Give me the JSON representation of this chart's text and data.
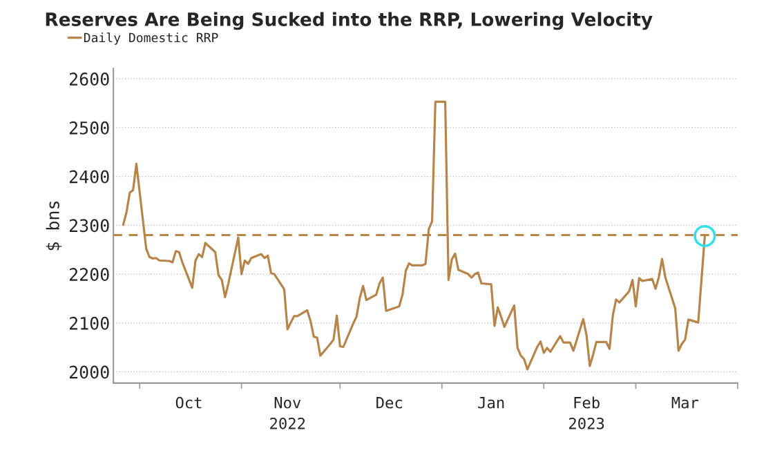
{
  "chart_data": {
    "type": "line",
    "title": "Reserves Are Being Sucked into the RRP, Lowering Velocity",
    "ylabel": "$ bns",
    "xlim": [
      "2022-09-23",
      "2023-04-01"
    ],
    "xticks": [
      {
        "value": "2022-10-01",
        "label": null
      },
      {
        "value": "2022-11-01",
        "label": null
      },
      {
        "value": "2022-12-01",
        "label": null
      },
      {
        "value": "2023-01-01",
        "label": null
      },
      {
        "value": "2023-02-01",
        "label": null
      },
      {
        "value": "2023-03-01",
        "label": null
      },
      {
        "value": "2023-04-01",
        "label": null
      },
      {
        "value": "2022-10-16",
        "label": "Oct"
      },
      {
        "value": "2022-11-15",
        "label": "Nov\n2022"
      },
      {
        "value": "2022-12-16",
        "label": "Dec"
      },
      {
        "value": "2023-01-16",
        "label": "Jan"
      },
      {
        "value": "2023-02-14",
        "label": "Feb\n2023"
      },
      {
        "value": "2023-03-16",
        "label": "Mar"
      }
    ],
    "ylim": [
      1977,
      2621
    ],
    "yticks": [
      2000,
      2100,
      2200,
      2300,
      2400,
      2500,
      2600
    ],
    "grid": "y",
    "legend": "top left",
    "ref_lines": [
      {
        "axis": "y",
        "value": 2280,
        "color": "#b5854a",
        "line_style": "dashed"
      }
    ],
    "series": [
      {
        "name": "Daily Domestic RRP",
        "color": "#b5854a",
        "line_style": "solid",
        "x": [
          "2022-09-26",
          "2022-09-27",
          "2022-09-28",
          "2022-09-29",
          "2022-09-30",
          "2022-10-03",
          "2022-10-04",
          "2022-10-05",
          "2022-10-06",
          "2022-10-07",
          "2022-10-10",
          "2022-10-11",
          "2022-10-12",
          "2022-10-13",
          "2022-10-14",
          "2022-10-17",
          "2022-10-18",
          "2022-10-19",
          "2022-10-20",
          "2022-10-21",
          "2022-10-24",
          "2022-10-25",
          "2022-10-26",
          "2022-10-27",
          "2022-10-28",
          "2022-10-31",
          "2022-11-01",
          "2022-11-02",
          "2022-11-03",
          "2022-11-04",
          "2022-11-07",
          "2022-11-08",
          "2022-11-09",
          "2022-11-10",
          "2022-11-11",
          "2022-11-14",
          "2022-11-15",
          "2022-11-16",
          "2022-11-17",
          "2022-11-18",
          "2022-11-21",
          "2022-11-22",
          "2022-11-23",
          "2022-11-24",
          "2022-11-25",
          "2022-11-28",
          "2022-11-29",
          "2022-11-30",
          "2022-12-01",
          "2022-12-02",
          "2022-12-05",
          "2022-12-06",
          "2022-12-07",
          "2022-12-08",
          "2022-12-09",
          "2022-12-12",
          "2022-12-13",
          "2022-12-14",
          "2022-12-15",
          "2022-12-16",
          "2022-12-19",
          "2022-12-20",
          "2022-12-21",
          "2022-12-22",
          "2022-12-23",
          "2022-12-26",
          "2022-12-27",
          "2022-12-28",
          "2022-12-29",
          "2022-12-30",
          "2023-01-02",
          "2023-01-03",
          "2023-01-04",
          "2023-01-05",
          "2023-01-06",
          "2023-01-09",
          "2023-01-10",
          "2023-01-11",
          "2023-01-12",
          "2023-01-13",
          "2023-01-16",
          "2023-01-17",
          "2023-01-18",
          "2023-01-19",
          "2023-01-20",
          "2023-01-23",
          "2023-01-24",
          "2023-01-25",
          "2023-01-26",
          "2023-01-27",
          "2023-01-30",
          "2023-01-31",
          "2023-02-01",
          "2023-02-02",
          "2023-02-03",
          "2023-02-06",
          "2023-02-07",
          "2023-02-08",
          "2023-02-09",
          "2023-02-10",
          "2023-02-13",
          "2023-02-14",
          "2023-02-15",
          "2023-02-16",
          "2023-02-17",
          "2023-02-20",
          "2023-02-21",
          "2023-02-22",
          "2023-02-23",
          "2023-02-24",
          "2023-02-27",
          "2023-02-28",
          "2023-03-01",
          "2023-03-02",
          "2023-03-03",
          "2023-03-06",
          "2023-03-07",
          "2023-03-08",
          "2023-03-09",
          "2023-03-10",
          "2023-03-13",
          "2023-03-14",
          "2023-03-15",
          "2023-03-16",
          "2023-03-17",
          "2023-03-20",
          "2023-03-22"
        ],
        "values": [
          2301,
          2327,
          2367,
          2372,
          2426,
          2252,
          2235,
          2232,
          2233,
          2228,
          2227,
          2224,
          2247,
          2245,
          2224,
          2172,
          2228,
          2241,
          2235,
          2264,
          2245,
          2198,
          2188,
          2153,
          2181,
          2275,
          2200,
          2228,
          2221,
          2233,
          2241,
          2233,
          2238,
          2202,
          2200,
          2169,
          2087,
          2101,
          2114,
          2114,
          2126,
          2104,
          2072,
          2070,
          2033,
          2057,
          2066,
          2115,
          2052,
          2051,
          2099,
          2113,
          2151,
          2176,
          2147,
          2158,
          2181,
          2193,
          2125,
          2127,
          2134,
          2158,
          2207,
          2222,
          2218,
          2218,
          2221,
          2292,
          2308,
          2553,
          2553,
          2188,
          2230,
          2242,
          2209,
          2200,
          2193,
          2200,
          2203,
          2181,
          2179,
          2094,
          2132,
          2113,
          2092,
          2136,
          2049,
          2033,
          2026,
          2005,
          2051,
          2062,
          2039,
          2049,
          2041,
          2073,
          2060,
          2060,
          2060,
          2043,
          2108,
          2075,
          2012,
          2035,
          2061,
          2061,
          2047,
          2115,
          2148,
          2142,
          2165,
          2188,
          2134,
          2192,
          2186,
          2190,
          2170,
          2193,
          2231,
          2193,
          2130,
          2043,
          2057,
          2066,
          2107,
          2101,
          2278
        ]
      },
      {
        "type": "scatter",
        "color": "#33e0e8",
        "marker": "circle",
        "x": [
          "2023-03-22"
        ],
        "values": [
          2278
        ]
      }
    ]
  }
}
